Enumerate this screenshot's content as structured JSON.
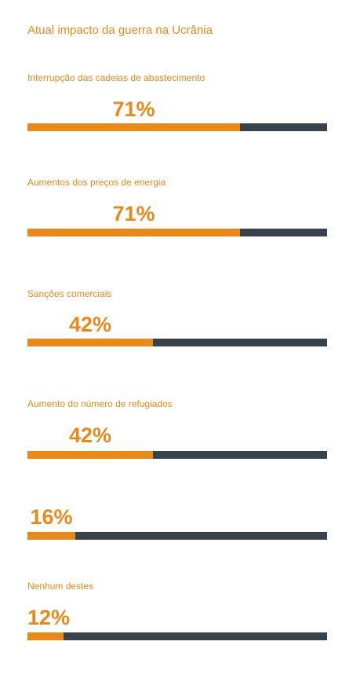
{
  "title": "Atual impacto da guerra na Ucrânia",
  "colors": {
    "accent": "#e8891a",
    "track": "#37424b",
    "background": "#ffffff"
  },
  "chart_data": {
    "type": "bar",
    "title": "Atual impacto da guerra na Ucrânia",
    "categories": [
      "Interrupção das cadeias de abastecimento",
      "Aumentos dos preços de energia",
      "Sanções comerciais",
      "Aumento do número de refugiados",
      "",
      "Nenhum destes"
    ],
    "values": [
      71,
      71,
      42,
      42,
      16,
      12
    ],
    "value_labels": [
      "71%",
      "71%",
      "42%",
      "42%",
      "16%",
      "12%"
    ],
    "unit": "%",
    "xlim": [
      0,
      100
    ],
    "grid": false,
    "legend": "none"
  }
}
